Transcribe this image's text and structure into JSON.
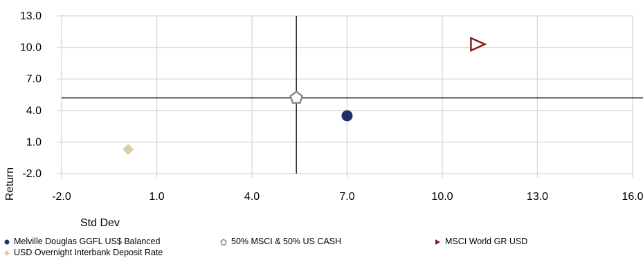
{
  "chart_data": {
    "type": "scatter",
    "xlabel": "Std Dev",
    "ylabel": "Return",
    "xlim": [
      -2.0,
      16.0
    ],
    "ylim": [
      -2.0,
      13.0
    ],
    "xticks": [
      "-2.0",
      "1.0",
      "4.0",
      "7.0",
      "10.0",
      "13.0",
      "16.0"
    ],
    "yticks": [
      "13.0",
      "10.0",
      "7.0",
      "4.0",
      "1.0",
      "-2.0"
    ],
    "grid": true,
    "crosshair": {
      "x": 5.4,
      "y": 5.2
    },
    "series": [
      {
        "name": "Melville Douglas GGFL US$ Balanced",
        "x": 7.0,
        "y": 3.5,
        "marker": "circle",
        "color": "#1f2f6e"
      },
      {
        "name": "50% MSCI & 50% US CASH",
        "x": 5.4,
        "y": 5.2,
        "marker": "pentagon",
        "color": "#8a8a8a"
      },
      {
        "name": "MSCI World GR USD",
        "x": 11.1,
        "y": 10.3,
        "marker": "triangle-right",
        "color": "#8b1a1a"
      },
      {
        "name": "USD Overnight Interbank Deposit Rate",
        "x": 0.1,
        "y": 0.3,
        "marker": "diamond",
        "color": "#d8ccaa"
      }
    ],
    "legend_position": "bottom"
  }
}
